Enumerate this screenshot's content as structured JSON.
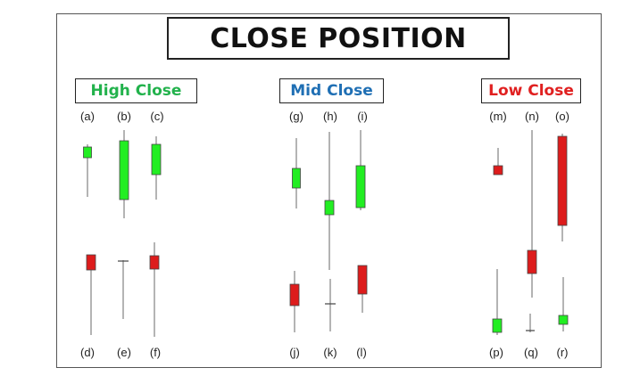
{
  "title": "CLOSE POSITION",
  "groups": [
    {
      "id": "high",
      "label": "High Close",
      "color": "#22b24c"
    },
    {
      "id": "mid",
      "label": "Mid Close",
      "color": "#1f6fb4"
    },
    {
      "id": "low",
      "label": "Low Close",
      "color": "#e02020"
    }
  ],
  "candle_labels": [
    "(a)",
    "(b)",
    "(c)",
    "(d)",
    "(e)",
    "(f)",
    "(g)",
    "(h)",
    "(i)",
    "(j)",
    "(k)",
    "(l)",
    "(m)",
    "(n)",
    "(o)",
    "(p)",
    "(q)",
    "(r)"
  ],
  "colors": {
    "bull": "#22ee22",
    "bear": "#dd1c1c",
    "wick": "#9a9a9a",
    "outline": "#444444"
  },
  "candles": [
    {
      "label": "(a)",
      "type": "bull"
    },
    {
      "label": "(b)",
      "type": "bull"
    },
    {
      "label": "(c)",
      "type": "bull"
    },
    {
      "label": "(d)",
      "type": "bear"
    },
    {
      "label": "(e)",
      "type": "doji"
    },
    {
      "label": "(f)",
      "type": "bear"
    },
    {
      "label": "(g)",
      "type": "bull"
    },
    {
      "label": "(h)",
      "type": "bull"
    },
    {
      "label": "(i)",
      "type": "bull"
    },
    {
      "label": "(j)",
      "type": "bear"
    },
    {
      "label": "(k)",
      "type": "doji"
    },
    {
      "label": "(l)",
      "type": "bear"
    },
    {
      "label": "(m)",
      "type": "bear"
    },
    {
      "label": "(n)",
      "type": "bear"
    },
    {
      "label": "(o)",
      "type": "bear"
    },
    {
      "label": "(p)",
      "type": "bull"
    },
    {
      "label": "(q)",
      "type": "doji"
    },
    {
      "label": "(r)",
      "type": "bull"
    }
  ]
}
